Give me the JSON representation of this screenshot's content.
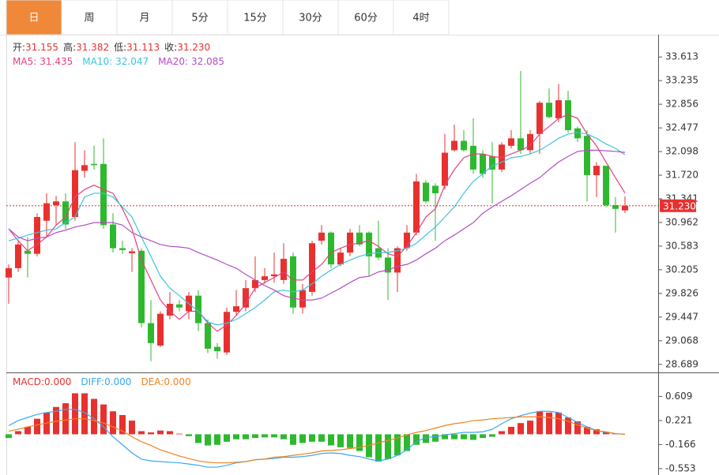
{
  "tabs": {
    "items": [
      "日",
      "周",
      "月",
      "5分",
      "15分",
      "30分",
      "60分",
      "4时"
    ],
    "active": 0
  },
  "chart_data": [
    {
      "type": "candlestick",
      "readout": [
        {
          "label": "开:",
          "value": "31.155"
        },
        {
          "label": "高:",
          "value": "31.382"
        },
        {
          "label": "低:",
          "value": "31.113"
        },
        {
          "label": "收:",
          "value": "31.230"
        }
      ],
      "up_color": "#e8312f",
      "down_color": "#2eb82e",
      "open": [
        30.08,
        30.23,
        30.51,
        30.46,
        30.99,
        31.24,
        31.3,
        31.05,
        31.79,
        31.9,
        31.9,
        30.93,
        30.55,
        30.47,
        30.51,
        29.35,
        28.99,
        29.47,
        29.65,
        29.54,
        29.79,
        29.35,
        28.97,
        28.88,
        29.53,
        29.6,
        29.91,
        30.04,
        30.1,
        30.04,
        30.42,
        29.6,
        29.85,
        30.67,
        30.8,
        30.29,
        30.48,
        30.8,
        30.8,
        30.55,
        30.4,
        30.16,
        30.55,
        30.8,
        31.6,
        31.55,
        31.55,
        32.12,
        32.27,
        32.19,
        32.06,
        32.02,
        31.81,
        32.19,
        32.31,
        32.12,
        32.38,
        32.88,
        32.63,
        32.92,
        32.47,
        32.35,
        31.72,
        31.87,
        31.24,
        31.155
      ],
      "high": [
        30.29,
        30.67,
        30.73,
        31.11,
        31.43,
        31.39,
        31.43,
        32.25,
        32.12,
        32.19,
        32.31,
        31.11,
        30.67,
        30.55,
        30.55,
        29.72,
        29.54,
        29.85,
        29.72,
        29.85,
        29.88,
        29.41,
        29.03,
        29.6,
        29.88,
        30.04,
        30.42,
        30.23,
        30.48,
        30.63,
        30.48,
        29.98,
        30.67,
        30.92,
        30.82,
        30.55,
        30.86,
        30.92,
        30.82,
        30.99,
        30.55,
        30.58,
        30.92,
        31.74,
        31.64,
        31.59,
        32.38,
        32.53,
        32.44,
        32.63,
        32.12,
        32.25,
        32.25,
        32.44,
        33.39,
        32.44,
        32.91,
        33.11,
        33.18,
        33.07,
        32.5,
        32.44,
        31.93,
        31.87,
        31.37,
        31.382
      ],
      "low": [
        29.66,
        30.17,
        30.08,
        30.42,
        30.73,
        30.92,
        30.86,
        30.99,
        31.68,
        31.81,
        30.86,
        30.48,
        30.46,
        30.17,
        29.28,
        28.74,
        28.97,
        29.41,
        29.54,
        29.41,
        29.22,
        28.87,
        28.78,
        28.84,
        29.47,
        29.54,
        29.85,
        29.98,
        30.0,
        29.98,
        29.5,
        29.5,
        29.79,
        30.61,
        30.23,
        30.26,
        30.42,
        30.58,
        30.1,
        30.36,
        29.72,
        29.85,
        30.51,
        30.76,
        31.27,
        30.67,
        31.49,
        32.1,
        32.1,
        31.74,
        31.68,
        31.27,
        31.77,
        32.15,
        32.06,
        32.06,
        32.06,
        32.63,
        32.57,
        32.4,
        32.25,
        31.3,
        31.37,
        31.21,
        30.8,
        31.113
      ],
      "close": [
        30.23,
        30.61,
        30.46,
        31.05,
        31.27,
        31.3,
        30.93,
        31.8,
        31.88,
        31.88,
        30.92,
        30.55,
        30.52,
        30.5,
        29.35,
        29.03,
        29.5,
        29.66,
        29.6,
        29.79,
        29.35,
        28.94,
        28.9,
        29.53,
        29.62,
        29.91,
        30.04,
        30.1,
        30.13,
        30.38,
        29.6,
        29.88,
        30.63,
        30.8,
        30.29,
        30.48,
        30.8,
        30.61,
        30.42,
        30.4,
        30.16,
        30.55,
        30.8,
        31.62,
        31.3,
        31.43,
        32.08,
        32.27,
        32.12,
        31.81,
        31.74,
        31.81,
        32.21,
        32.31,
        32.12,
        32.38,
        32.88,
        32.65,
        32.92,
        32.44,
        32.31,
        31.72,
        31.87,
        31.24,
        31.18,
        31.23
      ],
      "series": [
        {
          "name": "MA5:",
          "color": "#e5407e",
          "values": [
            30.86,
            30.67,
            30.51,
            30.61,
            30.73,
            30.92,
            31.05,
            31.37,
            31.49,
            31.56,
            31.49,
            31.43,
            31.18,
            30.86,
            30.36,
            30.04,
            29.72,
            29.54,
            29.41,
            29.54,
            29.54,
            29.35,
            29.22,
            29.32,
            29.47,
            29.66,
            29.91,
            30.0,
            30.08,
            30.17,
            30.04,
            30.04,
            30.17,
            30.29,
            30.48,
            30.55,
            30.61,
            30.63,
            30.67,
            30.58,
            30.46,
            30.42,
            30.58,
            30.8,
            31.05,
            31.18,
            31.56,
            31.81,
            32.0,
            32.06,
            32.06,
            32.02,
            32.0,
            32.06,
            32.12,
            32.19,
            32.38,
            32.5,
            32.63,
            32.69,
            32.63,
            32.38,
            32.19,
            31.93,
            31.68,
            31.435
          ]
        },
        {
          "name": "MA10:",
          "color": "#3ec3df",
          "values": [
            30.67,
            30.71,
            30.76,
            30.8,
            30.84,
            30.86,
            30.96,
            31.05,
            31.37,
            31.43,
            31.43,
            31.37,
            31.21,
            31.05,
            30.73,
            30.42,
            30.1,
            29.91,
            29.79,
            29.66,
            29.54,
            29.37,
            29.32,
            29.35,
            29.41,
            29.5,
            29.6,
            29.72,
            29.85,
            29.88,
            29.85,
            29.88,
            29.98,
            30.1,
            30.2,
            30.29,
            30.36,
            30.42,
            30.46,
            30.48,
            30.48,
            30.51,
            30.55,
            30.63,
            30.76,
            30.89,
            31.05,
            31.21,
            31.43,
            31.62,
            31.74,
            31.87,
            31.93,
            32.0,
            32.02,
            32.06,
            32.12,
            32.21,
            32.31,
            32.38,
            32.4,
            32.38,
            32.31,
            32.22,
            32.15,
            32.047
          ]
        },
        {
          "name": "MA20:",
          "color": "#b24ec4",
          "values": [
            30.86,
            30.73,
            30.67,
            30.71,
            30.73,
            30.8,
            30.84,
            30.89,
            30.92,
            30.96,
            30.96,
            30.96,
            30.92,
            30.8,
            30.73,
            30.67,
            30.61,
            30.58,
            30.57,
            30.55,
            30.48,
            30.42,
            30.36,
            30.29,
            30.23,
            30.13,
            30.04,
            29.95,
            29.88,
            29.79,
            29.75,
            29.72,
            29.72,
            29.75,
            29.83,
            29.91,
            30.0,
            30.08,
            30.1,
            30.17,
            30.2,
            30.26,
            30.29,
            30.36,
            30.46,
            30.55,
            30.67,
            30.76,
            30.86,
            30.96,
            31.11,
            31.21,
            31.3,
            31.39,
            31.49,
            31.59,
            31.68,
            31.81,
            31.93,
            32.02,
            32.1,
            32.12,
            32.12,
            32.11,
            32.1,
            32.085
          ]
        }
      ],
      "ylim": [
        28.56,
        33.97
      ],
      "yticks": [
        28.689,
        29.068,
        29.447,
        29.826,
        30.205,
        30.583,
        30.962,
        31.341,
        {
          "value": 31.72,
          "label": "31.720"
        },
        32.098,
        32.477,
        32.856,
        33.235,
        33.613
      ],
      "last_price": {
        "value": 31.23,
        "label": "31.230"
      }
    },
    {
      "type": "macd",
      "histogram": {
        "name": "MACD:",
        "legend_value": "0.000",
        "color": "#e8312f",
        "up_color": "#e8312f",
        "down_color": "#2eb82e",
        "values": [
          -0.06,
          0.05,
          0.12,
          0.25,
          0.35,
          0.44,
          0.5,
          0.66,
          0.66,
          0.57,
          0.48,
          0.37,
          0.31,
          0.22,
          0.05,
          0.03,
          0.06,
          0.05,
          0.01,
          -0.03,
          -0.14,
          -0.18,
          -0.17,
          -0.12,
          -0.08,
          -0.08,
          -0.06,
          -0.05,
          -0.05,
          -0.08,
          -0.17,
          -0.14,
          -0.12,
          -0.12,
          -0.18,
          -0.21,
          -0.22,
          -0.27,
          -0.37,
          -0.44,
          -0.4,
          -0.34,
          -0.27,
          -0.17,
          -0.14,
          -0.12,
          -0.08,
          -0.08,
          -0.08,
          -0.09,
          -0.06,
          -0.04,
          0.05,
          0.12,
          0.18,
          0.22,
          0.37,
          0.35,
          0.35,
          0.27,
          0.21,
          0.12,
          0.08,
          0.04,
          0.01,
          0
        ]
      },
      "series": [
        {
          "name": "DIFF:",
          "legend_value": "0.000",
          "color": "#3aa8ee",
          "values": [
            0.14,
            0.22,
            0.27,
            0.32,
            0.35,
            0.37,
            0.4,
            0.4,
            0.35,
            0.25,
            0.12,
            -0.04,
            -0.17,
            -0.3,
            -0.4,
            -0.43,
            -0.44,
            -0.45,
            -0.46,
            -0.48,
            -0.5,
            -0.53,
            -0.53,
            -0.5,
            -0.46,
            -0.44,
            -0.41,
            -0.4,
            -0.39,
            -0.37,
            -0.37,
            -0.36,
            -0.34,
            -0.31,
            -0.3,
            -0.31,
            -0.34,
            -0.36,
            -0.4,
            -0.43,
            -0.4,
            -0.34,
            -0.25,
            -0.12,
            -0.05,
            -0.04,
            -0.01,
            0.01,
            0.03,
            0.03,
            0.04,
            0.08,
            0.17,
            0.25,
            0.3,
            0.34,
            0.37,
            0.37,
            0.35,
            0.27,
            0.19,
            0.12,
            0.06,
            0.03,
            0.01,
            0
          ]
        },
        {
          "name": "DEA:",
          "legend_value": "0.000",
          "color": "#f0821e",
          "values": [
            0.05,
            0.08,
            0.12,
            0.15,
            0.18,
            0.21,
            0.23,
            0.25,
            0.25,
            0.22,
            0.18,
            0.12,
            0.05,
            -0.04,
            -0.12,
            -0.18,
            -0.25,
            -0.3,
            -0.35,
            -0.39,
            -0.43,
            -0.45,
            -0.46,
            -0.46,
            -0.45,
            -0.44,
            -0.41,
            -0.4,
            -0.37,
            -0.36,
            -0.34,
            -0.32,
            -0.3,
            -0.27,
            -0.26,
            -0.25,
            -0.23,
            -0.21,
            -0.18,
            -0.14,
            -0.1,
            -0.06,
            -0.01,
            0.03,
            0.06,
            0.1,
            0.14,
            0.17,
            0.19,
            0.22,
            0.23,
            0.25,
            0.26,
            0.27,
            0.28,
            0.28,
            0.28,
            0.27,
            0.25,
            0.21,
            0.15,
            0.1,
            0.06,
            0.04,
            0.01,
            0
          ]
        }
      ],
      "ylim": [
        -0.656,
        0.996
      ],
      "yticks": [
        -0.553,
        -0.166,
        0.221,
        0.609
      ]
    }
  ]
}
